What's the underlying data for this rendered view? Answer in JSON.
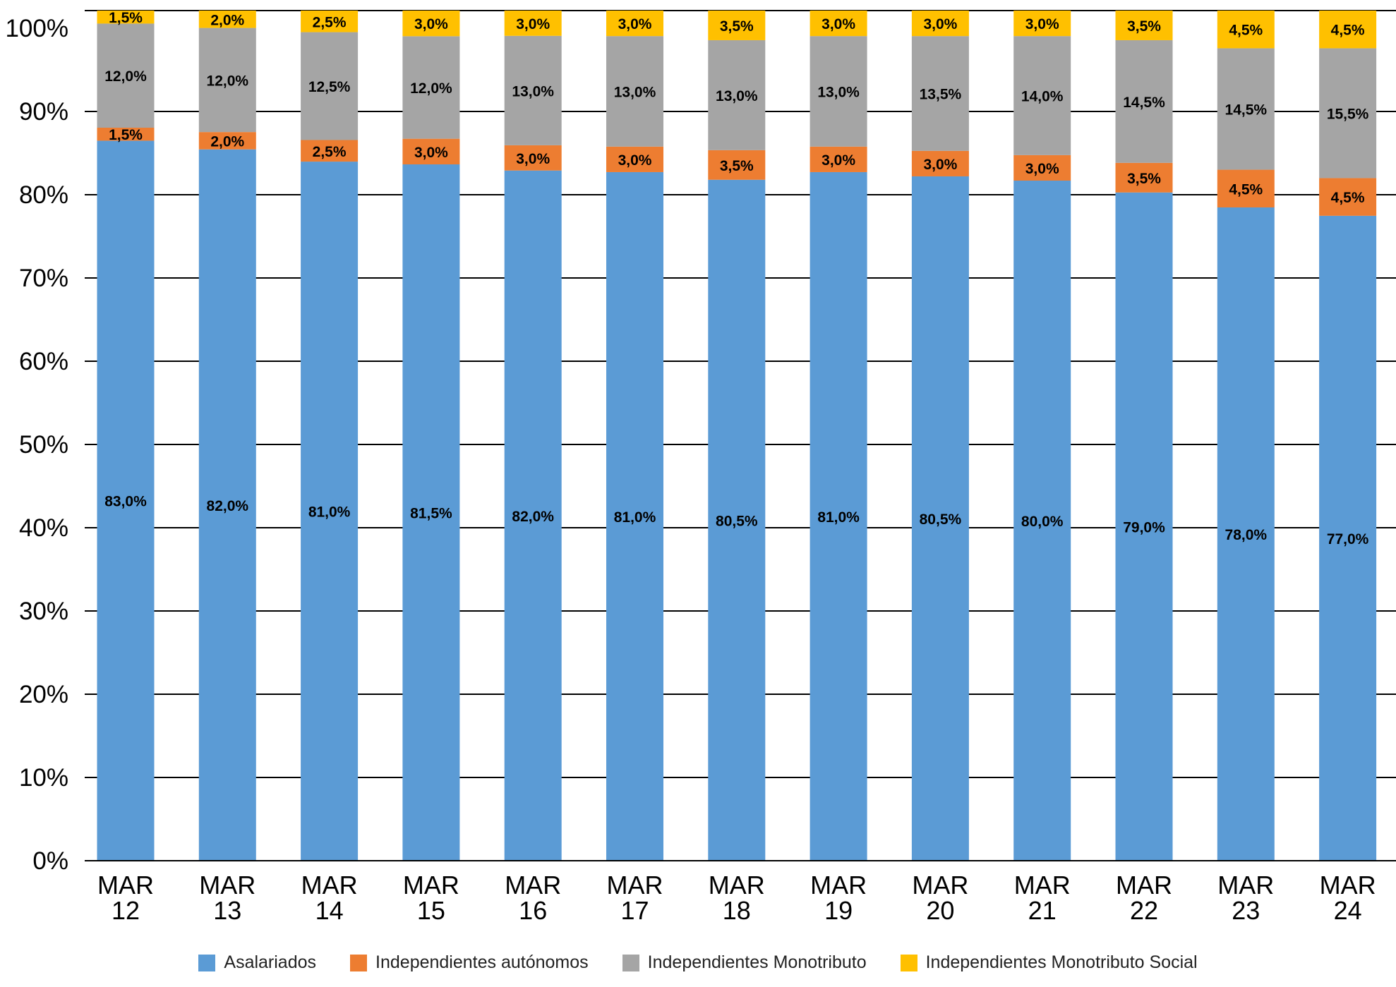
{
  "chart_data": {
    "type": "bar",
    "stacked": true,
    "categories": [
      [
        "MAR",
        "12"
      ],
      [
        "MAR",
        "13"
      ],
      [
        "MAR",
        "14"
      ],
      [
        "MAR",
        "15"
      ],
      [
        "MAR",
        "16"
      ],
      [
        "MAR",
        "17"
      ],
      [
        "MAR",
        "18"
      ],
      [
        "MAR",
        "19"
      ],
      [
        "MAR",
        "20"
      ],
      [
        "MAR",
        "21"
      ],
      [
        "MAR",
        "22"
      ],
      [
        "MAR",
        "23"
      ],
      [
        "MAR",
        "24"
      ]
    ],
    "series": [
      {
        "name": "Asalariados",
        "color": "#5B9BD5",
        "values": [
          83.0,
          82.0,
          81.0,
          81.5,
          82.0,
          81.0,
          80.5,
          81.0,
          80.5,
          80.0,
          79.0,
          78.0,
          77.0
        ]
      },
      {
        "name": "Independientes autónomos",
        "color": "#ED7D31",
        "values": [
          1.5,
          2.0,
          2.5,
          3.0,
          3.0,
          3.0,
          3.5,
          3.0,
          3.0,
          3.0,
          3.5,
          4.5,
          4.5
        ]
      },
      {
        "name": "Independientes Monotributo",
        "color": "#A5A5A5",
        "values": [
          12.0,
          12.0,
          12.5,
          12.0,
          13.0,
          13.0,
          13.0,
          13.0,
          13.5,
          14.0,
          14.5,
          14.5,
          15.5
        ]
      },
      {
        "name": "Independientes Monotributo Social",
        "color": "#FFC000",
        "values": [
          1.5,
          2.0,
          2.5,
          3.0,
          3.0,
          3.0,
          3.5,
          3.0,
          3.0,
          3.0,
          3.5,
          4.5,
          4.5
        ]
      }
    ],
    "yticks": [
      "0%",
      "10%",
      "20%",
      "30%",
      "40%",
      "50%",
      "60%",
      "70%",
      "80%",
      "90%",
      "100%"
    ],
    "ylim": [
      0,
      100
    ],
    "grid": true,
    "legend_position": "bottom",
    "data_label_format": "comma-decimal percent"
  }
}
